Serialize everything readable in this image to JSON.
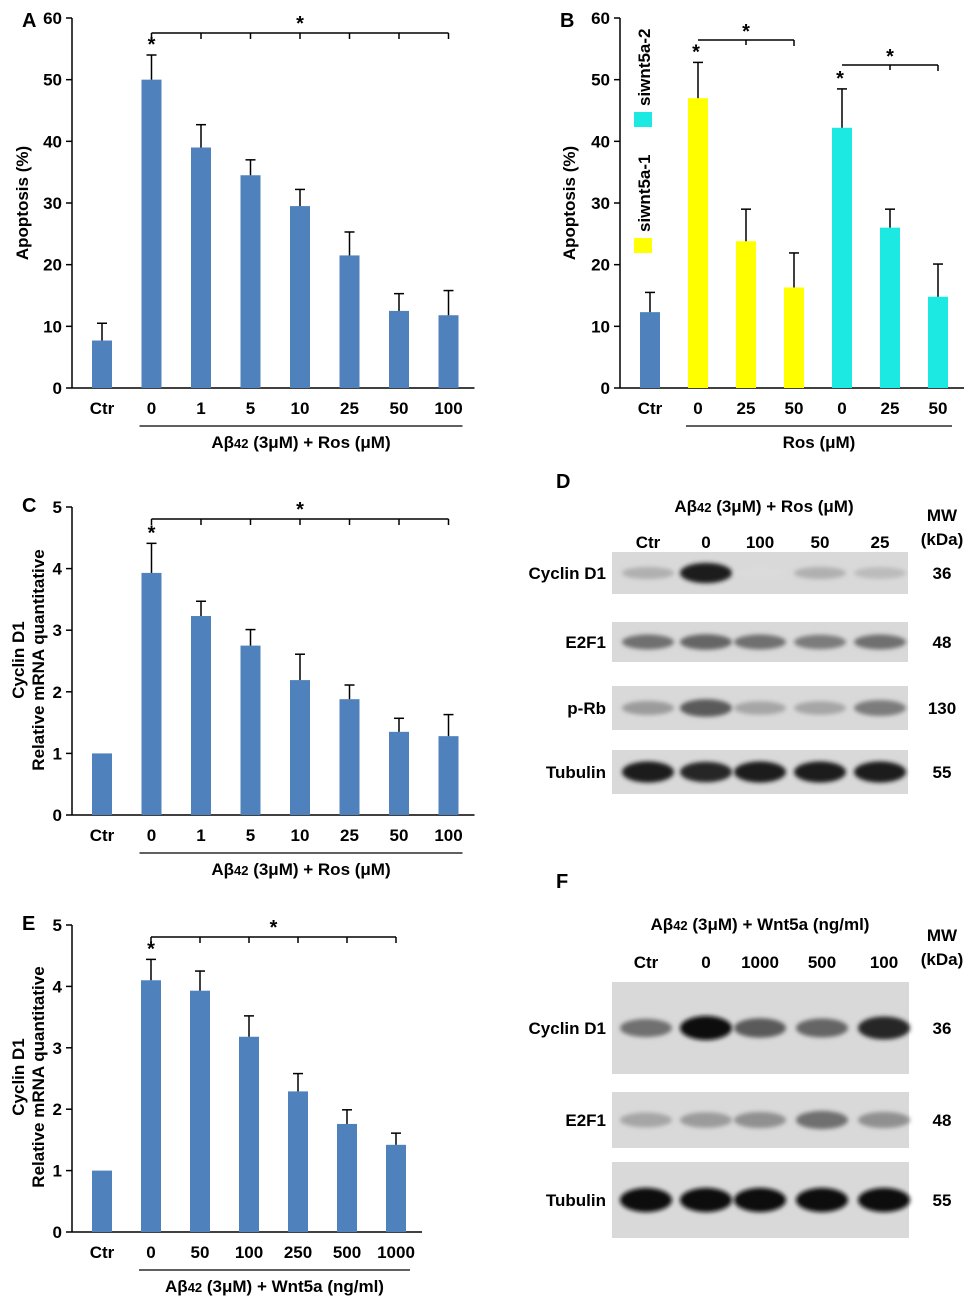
{
  "colors": {
    "blue": "#4f81bd",
    "yellow": "#ffff00",
    "cyan": "#1de9e3",
    "ink": "#000000"
  },
  "chart_data": [
    {
      "id": "A",
      "type": "bar",
      "panel_label": "A",
      "ylabel": "Apoptosis (%)",
      "ylabel2": "",
      "ylim": [
        0,
        60
      ],
      "yticks": [
        0,
        10,
        20,
        30,
        40,
        50,
        60
      ],
      "categories": [
        "Ctr",
        "0",
        "1",
        "5",
        "10",
        "25",
        "50",
        "100"
      ],
      "values": [
        7.7,
        50,
        39,
        34.5,
        29.5,
        21.5,
        12.5,
        11.8
      ],
      "errors": [
        2.8,
        4,
        3.7,
        2.5,
        2.7,
        3.8,
        2.8,
        4
      ],
      "bar_colors": [
        "blue",
        "blue",
        "blue",
        "blue",
        "blue",
        "blue",
        "blue",
        "blue"
      ],
      "group_label": "Aβ42 (3μM) + Ros (μM)",
      "sig_star_above": "*",
      "sig_bracket_star": "*"
    },
    {
      "id": "B",
      "type": "bar",
      "panel_label": "B",
      "ylabel": "Apoptosis (%)",
      "ylabel2": "",
      "ylim": [
        0,
        60
      ],
      "yticks": [
        0,
        10,
        20,
        30,
        40,
        50,
        60
      ],
      "categories": [
        "Ctr",
        "0",
        "25",
        "50",
        "0",
        "25",
        "50"
      ],
      "values": [
        12.3,
        47,
        23.8,
        16.3,
        42.2,
        26,
        14.8
      ],
      "errors": [
        3.2,
        5.8,
        5.2,
        5.6,
        6.3,
        3,
        5.3
      ],
      "bar_colors": [
        "blue",
        "yellow",
        "yellow",
        "yellow",
        "cyan",
        "cyan",
        "cyan"
      ],
      "group_label": "Ros (μM)",
      "legend": [
        {
          "label": "siwnt5a-1",
          "color": "yellow"
        },
        {
          "label": "siwnt5a-2",
          "color": "cyan"
        }
      ],
      "sig_star_above": "*",
      "sig_bracket_star": "*"
    },
    {
      "id": "C",
      "type": "bar",
      "panel_label": "C",
      "ylabel": "Cyclin D1",
      "ylabel2": "Relative mRNA quantitative",
      "ylim": [
        0,
        5
      ],
      "yticks": [
        0,
        1,
        2,
        3,
        4,
        5
      ],
      "categories": [
        "Ctr",
        "0",
        "1",
        "5",
        "10",
        "25",
        "50",
        "100"
      ],
      "values": [
        1,
        3.93,
        3.23,
        2.75,
        2.19,
        1.88,
        1.35,
        1.28
      ],
      "errors": [
        0,
        0.48,
        0.24,
        0.26,
        0.42,
        0.23,
        0.22,
        0.35
      ],
      "bar_colors": [
        "blue",
        "blue",
        "blue",
        "blue",
        "blue",
        "blue",
        "blue",
        "blue"
      ],
      "group_label": "Aβ42 (3μM) + Ros (μM)",
      "sig_star_above": "*",
      "sig_bracket_star": "*"
    },
    {
      "id": "E",
      "type": "bar",
      "panel_label": "E",
      "ylabel": "Cyclin D1",
      "ylabel2": "Relative mRNA quantitative",
      "ylim": [
        0,
        5
      ],
      "yticks": [
        0,
        1,
        2,
        3,
        4,
        5
      ],
      "categories": [
        "Ctr",
        "0",
        "50",
        "100",
        "250",
        "500",
        "1000"
      ],
      "values": [
        1,
        4.1,
        3.93,
        3.18,
        2.29,
        1.76,
        1.42
      ],
      "errors": [
        0,
        0.34,
        0.32,
        0.34,
        0.29,
        0.23,
        0.19
      ],
      "bar_colors": [
        "blue",
        "blue",
        "blue",
        "blue",
        "blue",
        "blue",
        "blue"
      ],
      "group_label": "Aβ42 (3μM) + Wnt5a (ng/ml)",
      "sig_star_above": "*",
      "sig_bracket_star": "*"
    }
  ],
  "blots": [
    {
      "id": "D",
      "panel_label": "D",
      "title": "Aβ42 (3μM) + Ros (μM)",
      "lanes": [
        "Ctr",
        "0",
        "100",
        "50",
        "25"
      ],
      "mw_header": "MW",
      "mw_unit": "(kDa)",
      "rows": [
        {
          "name": "Cyclin D1",
          "mw": "36",
          "intensity": [
            0.25,
            0.95,
            0.05,
            0.25,
            0.2
          ]
        },
        {
          "name": "E2F1",
          "mw": "48",
          "intensity": [
            0.55,
            0.6,
            0.55,
            0.5,
            0.55
          ]
        },
        {
          "name": "p-Rb",
          "mw": "130",
          "intensity": [
            0.35,
            0.65,
            0.3,
            0.3,
            0.5
          ]
        },
        {
          "name": "Tubulin",
          "mw": "55",
          "intensity": [
            0.95,
            0.9,
            0.95,
            0.95,
            0.95
          ]
        }
      ]
    },
    {
      "id": "F",
      "panel_label": "F",
      "title": "Aβ42 (3μM) + Wnt5a (ng/ml)",
      "lanes": [
        "Ctr",
        "0",
        "1000",
        "500",
        "100"
      ],
      "mw_header": "MW",
      "mw_unit": "(kDa)",
      "rows": [
        {
          "name": "Cyclin D1",
          "mw": "36",
          "intensity": [
            0.55,
            1.0,
            0.65,
            0.6,
            0.9
          ]
        },
        {
          "name": "E2F1",
          "mw": "48",
          "intensity": [
            0.3,
            0.35,
            0.4,
            0.55,
            0.4
          ]
        },
        {
          "name": "Tubulin",
          "mw": "55",
          "intensity": [
            1.0,
            1.0,
            1.0,
            1.0,
            1.0
          ]
        }
      ]
    }
  ]
}
